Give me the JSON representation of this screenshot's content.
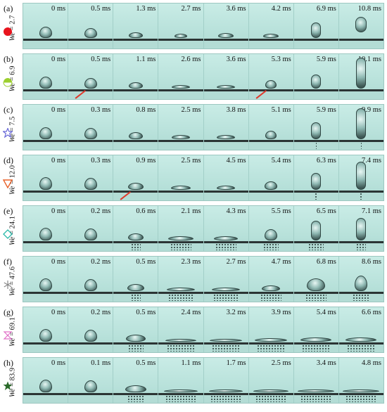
{
  "rows": [
    {
      "label": "(a)",
      "we_label": "We",
      "we_value": "= 2.7",
      "marker": {
        "name": "circle-marker",
        "color": "#e8141e"
      },
      "times": [
        "0 ms",
        "0.5 ms",
        "1.3 ms",
        "2.7 ms",
        "3.6 ms",
        "4.2 ms",
        "6.9 ms",
        "10.8 ms"
      ]
    },
    {
      "label": "(b)",
      "we_label": "We",
      "we_value": "= 6.9",
      "marker": {
        "name": "half-circle-marker",
        "color": "#9ccf2e"
      },
      "times": [
        "0 ms",
        "0.5 ms",
        "1.1 ms",
        "2.6 ms",
        "3.6 ms",
        "5.3 ms",
        "5.9 ms",
        "10.1 ms"
      ]
    },
    {
      "label": "(c)",
      "we_label": "We",
      "we_value": "= 7.5",
      "marker": {
        "name": "star-outline-marker",
        "color": "#6a6ad8"
      },
      "times": [
        "0 ms",
        "0.3 ms",
        "0.8 ms",
        "2.5 ms",
        "3.8 ms",
        "5.1 ms",
        "5.9 ms",
        "9.9 ms"
      ]
    },
    {
      "label": "(d)",
      "we_label": "We",
      "we_value": "= 12.0",
      "marker": {
        "name": "triangle-down-marker",
        "color": "#e8622a"
      },
      "times": [
        "0 ms",
        "0.3 ms",
        "0.9 ms",
        "2.5 ms",
        "4.5 ms",
        "5.4 ms",
        "6.3 ms",
        "7.4 ms"
      ]
    },
    {
      "label": "(e)",
      "we_label": "We",
      "we_value": "= 24.1",
      "marker": {
        "name": "diamond-outline-marker",
        "color": "#28b8a8"
      },
      "times": [
        "0 ms",
        "0.2 ms",
        "0.6 ms",
        "2.1 ms",
        "4.3 ms",
        "5.5 ms",
        "6.5 ms",
        "7.1 ms"
      ]
    },
    {
      "label": "(f)",
      "we_label": "We",
      "we_value": "= 47.6",
      "marker": {
        "name": "asterisk-marker",
        "color": "#888888"
      },
      "times": [
        "0 ms",
        "0.2 ms",
        "0.5 ms",
        "2.3 ms",
        "2.7 ms",
        "4.7 ms",
        "6.8 ms",
        "8.6 ms"
      ]
    },
    {
      "label": "(g)",
      "we_label": "We",
      "we_value": "= 69.1",
      "marker": {
        "name": "triangle-pair-marker",
        "color": "#e070c8"
      },
      "times": [
        "0 ms",
        "0.2 ms",
        "0.5 ms",
        "2.4 ms",
        "3.2 ms",
        "3.9 ms",
        "5.4 ms",
        "6.6 ms"
      ]
    },
    {
      "label": "(h)",
      "we_label": "We",
      "we_value": "= 83.9",
      "marker": {
        "name": "star-filled-marker",
        "color": "#2a6a2a"
      },
      "times": [
        "0 ms",
        "0.1 ms",
        "0.5 ms",
        "1.1 ms",
        "1.7 ms",
        "2.5 ms",
        "3.4 ms",
        "4.8 ms"
      ]
    }
  ]
}
